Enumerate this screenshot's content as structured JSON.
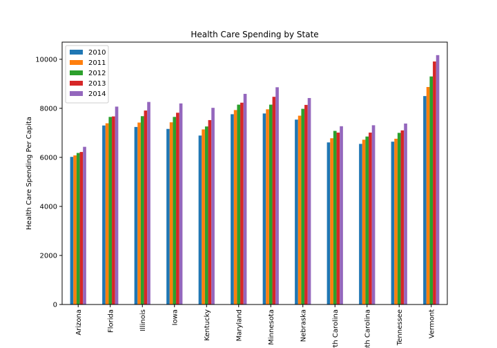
{
  "chart_data": {
    "type": "bar",
    "title": "Health Care Spending by State",
    "xlabel": "",
    "ylabel": "Health Care Spending Per Capita",
    "ylim": [
      0,
      10700
    ],
    "yticks": [
      0,
      2000,
      4000,
      6000,
      8000,
      10000
    ],
    "grid": false,
    "legend": "top-left",
    "categories": [
      "Arizona",
      "Florida",
      "Illinois",
      "Iowa",
      "Kentucky",
      "Maryland",
      "Minnesota",
      "Nebraska",
      "North Carolina",
      "South Carolina",
      "Tennessee",
      "Vermont"
    ],
    "series": [
      {
        "name": "2010",
        "color": "#1f77b4",
        "values": [
          6020,
          7300,
          7240,
          7160,
          6890,
          7760,
          7790,
          7540,
          6610,
          6550,
          6640,
          8500
        ]
      },
      {
        "name": "2011",
        "color": "#ff7f0e",
        "values": [
          6080,
          7390,
          7420,
          7430,
          7140,
          7930,
          7960,
          7700,
          6780,
          6720,
          6760,
          8870
        ]
      },
      {
        "name": "2012",
        "color": "#2ca02c",
        "values": [
          6180,
          7650,
          7680,
          7650,
          7260,
          8150,
          8150,
          7980,
          7080,
          6850,
          7000,
          9300
        ]
      },
      {
        "name": "2013",
        "color": "#d62728",
        "values": [
          6220,
          7670,
          7910,
          7820,
          7520,
          8230,
          8470,
          8140,
          7010,
          7010,
          7100,
          9910
        ]
      },
      {
        "name": "2014",
        "color": "#9467bd",
        "values": [
          6430,
          8070,
          8260,
          8200,
          8020,
          8590,
          8860,
          8420,
          7270,
          7310,
          7380,
          10170
        ]
      }
    ]
  }
}
